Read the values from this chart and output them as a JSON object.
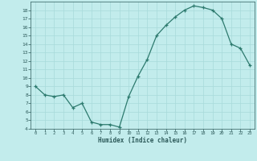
{
  "x": [
    0,
    1,
    2,
    3,
    4,
    5,
    6,
    7,
    8,
    9,
    10,
    11,
    12,
    13,
    14,
    15,
    16,
    17,
    18,
    19,
    20,
    21,
    22,
    23
  ],
  "y": [
    9.0,
    8.0,
    7.8,
    8.0,
    6.5,
    7.0,
    4.8,
    4.5,
    4.5,
    4.2,
    7.8,
    10.2,
    12.2,
    15.0,
    16.2,
    17.2,
    18.0,
    18.5,
    18.3,
    18.0,
    17.0,
    14.0,
    13.5,
    11.5
  ],
  "xlabel": "Humidex (Indice chaleur)",
  "xlim": [
    -0.5,
    23.5
  ],
  "ylim": [
    4,
    19
  ],
  "yticks": [
    4,
    5,
    6,
    7,
    8,
    9,
    10,
    11,
    12,
    13,
    14,
    15,
    16,
    17,
    18
  ],
  "xticks": [
    0,
    1,
    2,
    3,
    4,
    5,
    6,
    7,
    8,
    9,
    10,
    11,
    12,
    13,
    14,
    15,
    16,
    17,
    18,
    19,
    20,
    21,
    22,
    23
  ],
  "line_color": "#2d7a6e",
  "marker_color": "#2d7a6e",
  "bg_color": "#c2ecec",
  "grid_color": "#a8dada",
  "tick_color": "#2d5a5a",
  "label_color": "#2d5a5a"
}
